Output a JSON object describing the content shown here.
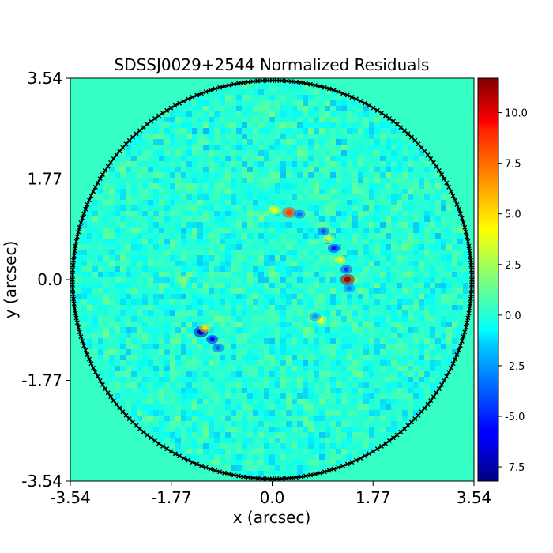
{
  "chart_data": {
    "type": "heatmap",
    "title": "SDSSJ0029+2544 Normalized Residuals",
    "xlabel": "x (arcsec)",
    "ylabel": "y (arcsec)",
    "xlim": [
      -3.54,
      3.54
    ],
    "ylim": [
      -3.54,
      3.54
    ],
    "xticks": [
      -3.54,
      -1.77,
      0.0,
      1.77,
      3.54
    ],
    "xtick_labels": [
      "-3.54",
      "-1.77",
      "0.0",
      "1.77",
      "3.54"
    ],
    "yticks": [
      -3.54,
      -1.77,
      0.0,
      1.77,
      3.54
    ],
    "ytick_labels": [
      "-3.54",
      "-1.77",
      "0.0",
      "1.77",
      "3.54"
    ],
    "colormap": "jet",
    "background_value": 0.0,
    "mask_radius_arcsec": 3.5,
    "mask_border_color": "#000000",
    "colorbar": {
      "vmin": -8.2,
      "vmax": 11.7,
      "ticks": [
        10.0,
        7.5,
        5.0,
        2.5,
        0.0,
        -2.5,
        -5.0,
        -7.5
      ],
      "tick_labels": [
        "10.0",
        "7.5",
        "5.0",
        "2.5",
        "0.0",
        "-2.5",
        "-5.0",
        "-7.5"
      ]
    },
    "features": [
      {
        "x": 0.3,
        "y": 1.18,
        "value": 8.5
      },
      {
        "x": 0.05,
        "y": 1.22,
        "value": 4.0
      },
      {
        "x": 0.48,
        "y": 1.15,
        "value": -3.5
      },
      {
        "x": 0.9,
        "y": 0.85,
        "value": -4.0
      },
      {
        "x": 1.0,
        "y": 0.72,
        "value": 3.0
      },
      {
        "x": 1.08,
        "y": 0.55,
        "value": -5.0
      },
      {
        "x": 1.2,
        "y": 0.35,
        "value": 3.5
      },
      {
        "x": 1.3,
        "y": 0.18,
        "value": -4.5
      },
      {
        "x": 1.32,
        "y": 0.0,
        "value": 11.0
      },
      {
        "x": 1.35,
        "y": -0.15,
        "value": -3.0
      },
      {
        "x": 0.85,
        "y": -0.7,
        "value": 4.0
      },
      {
        "x": 0.75,
        "y": -0.65,
        "value": -2.5
      },
      {
        "x": -1.25,
        "y": -0.92,
        "value": -7.0
      },
      {
        "x": -1.18,
        "y": -0.85,
        "value": 5.0
      },
      {
        "x": -1.05,
        "y": -1.05,
        "value": -6.0
      },
      {
        "x": -0.95,
        "y": -1.2,
        "value": -3.5
      },
      {
        "x": -1.55,
        "y": 0.0,
        "value": 2.0
      }
    ]
  }
}
